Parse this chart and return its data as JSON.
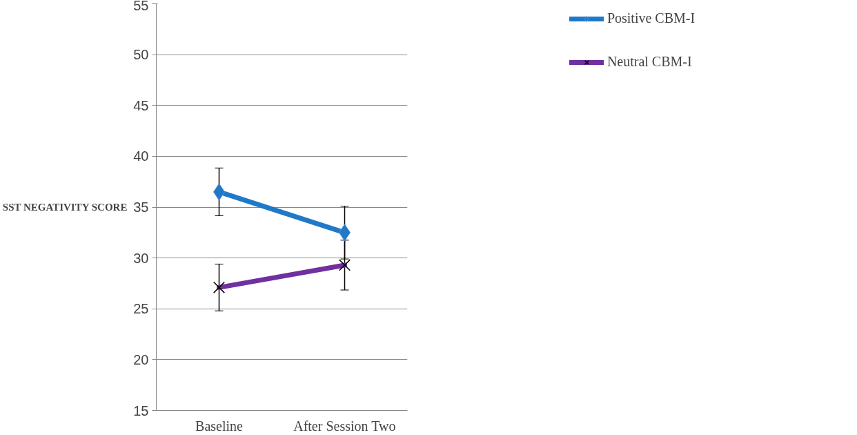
{
  "chart_data": {
    "type": "line",
    "ylabel": "SST NEGATIVITY SCORE",
    "categories": [
      "Baseline",
      "After Session Two"
    ],
    "series": [
      {
        "name": "Positive CBM-I",
        "color": "#1f78c8",
        "marker": "diamond",
        "values": [
          36.5,
          32.5
        ],
        "errors": [
          2.35,
          2.6
        ]
      },
      {
        "name": "Neutral CBM-I",
        "color": "#7030a0",
        "marker": "cross",
        "values": [
          27.1,
          29.3
        ],
        "errors": [
          2.3,
          2.45
        ]
      }
    ],
    "ylim": [
      15,
      55
    ],
    "yticks": [
      15,
      20,
      25,
      30,
      35,
      40,
      45,
      50,
      55
    ],
    "grid": "y",
    "legend": "top right"
  }
}
